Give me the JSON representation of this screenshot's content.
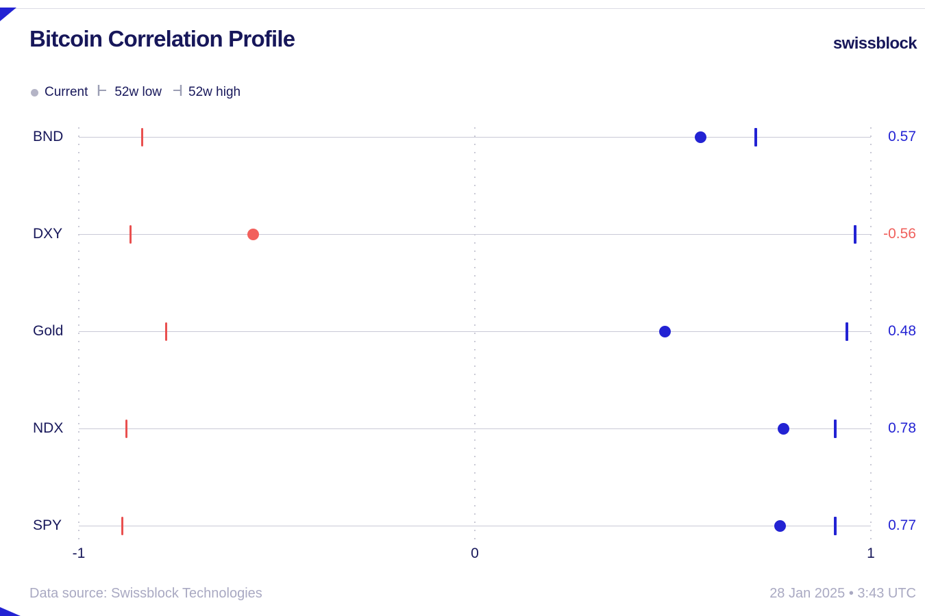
{
  "header": {
    "title": "Bitcoin Correlation Profile",
    "brand": "swissblock"
  },
  "legend": {
    "current": "Current",
    "low": "52w low",
    "high": "52w high"
  },
  "footer": {
    "source": "Data source: Swissblock Technologies",
    "timestamp": "28 Jan 2025 • 3:43 UTC"
  },
  "colors": {
    "positive": "#2323d3",
    "negative_dot": "#f2605c",
    "negative_tick": "#e9504f",
    "negative_text": "#f0605c",
    "navy": "#17175a",
    "track": "#c9c9d6",
    "grid": "#c9c9d5",
    "muted": "#a9a9c2",
    "legend_gray": "#b4b4c6"
  },
  "chart_data": {
    "type": "scatter",
    "subtype": "dot-range",
    "title": "Bitcoin Correlation Profile",
    "xlabel": "correlation",
    "xlim": [
      -1,
      1
    ],
    "grid": "vertical-dotted",
    "legend_position": "top-left",
    "x_ticks": [
      {
        "value": -1,
        "label": "-1"
      },
      {
        "value": 0,
        "label": "0"
      },
      {
        "value": 1,
        "label": "1"
      }
    ],
    "rows": [
      {
        "label": "BND",
        "current": 0.57,
        "low_52w": -0.84,
        "high_52w": 0.71,
        "value_label": "0.57"
      },
      {
        "label": "DXY",
        "current": -0.56,
        "low_52w": -0.87,
        "high_52w": 0.96,
        "value_label": "-0.56"
      },
      {
        "label": "Gold",
        "current": 0.48,
        "low_52w": -0.78,
        "high_52w": 0.94,
        "value_label": "0.48"
      },
      {
        "label": "NDX",
        "current": 0.78,
        "low_52w": -0.88,
        "high_52w": 0.91,
        "value_label": "0.78"
      },
      {
        "label": "SPY",
        "current": 0.77,
        "low_52w": -0.89,
        "high_52w": 0.91,
        "value_label": "0.77"
      }
    ]
  }
}
